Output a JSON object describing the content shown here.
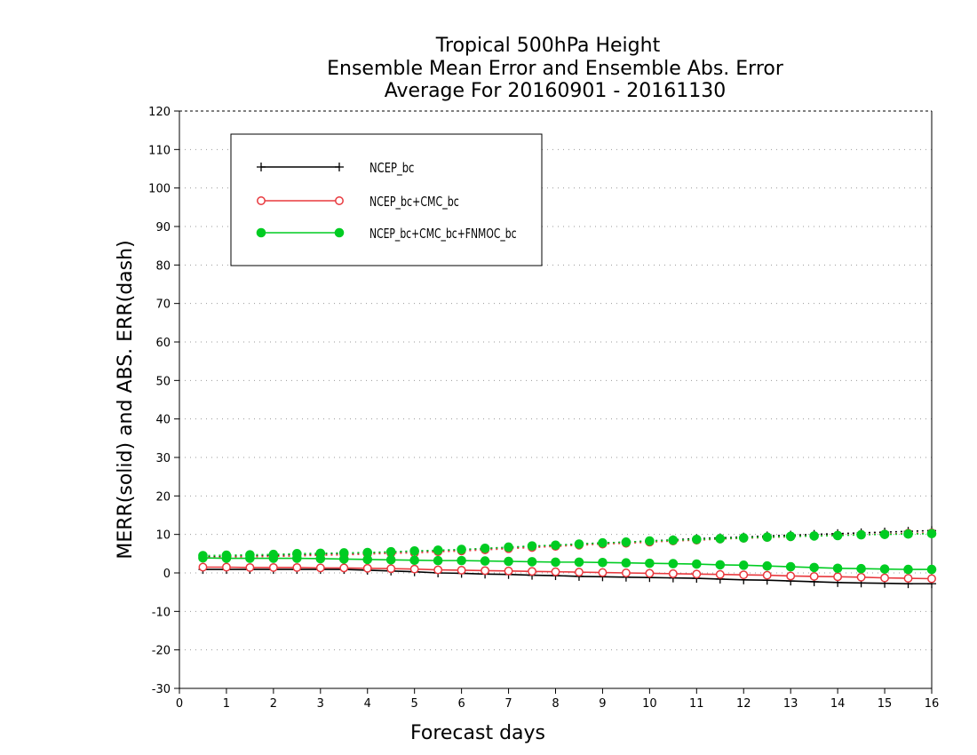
{
  "chart_data": {
    "type": "line",
    "title": [
      "Tropical 500hPa Height",
      "Ensemble Mean Error and Ensemble Abs. Error",
      "Average For 20160901 - 20161130"
    ],
    "xlabel": "Forecast days",
    "ylabel": "MERR(solid) and ABS. ERR(dash)",
    "xlim": [
      0,
      16
    ],
    "ylim": [
      -30,
      120
    ],
    "xticks": [
      0,
      1,
      2,
      3,
      4,
      5,
      6,
      7,
      8,
      9,
      10,
      11,
      12,
      13,
      14,
      15,
      16
    ],
    "yticks": [
      -30,
      -20,
      -10,
      0,
      10,
      20,
      30,
      40,
      50,
      60,
      70,
      80,
      90,
      100,
      110,
      120
    ],
    "grid": true,
    "legend_position": "top-left",
    "x": [
      0.5,
      1,
      1.5,
      2,
      2.5,
      3,
      3.5,
      4,
      4.5,
      5,
      5.5,
      6,
      6.5,
      7,
      7.5,
      8,
      8.5,
      9,
      9.5,
      10,
      10.5,
      11,
      11.5,
      12,
      12.5,
      13,
      13.5,
      14,
      14.5,
      15,
      15.5,
      16
    ],
    "series": [
      {
        "name": "NCEP_bc",
        "color": "#000000",
        "marker": "plus",
        "merr": [
          0.9,
          0.9,
          0.9,
          0.9,
          0.9,
          0.9,
          0.9,
          0.7,
          0.5,
          0.3,
          0.0,
          -0.1,
          -0.3,
          -0.4,
          -0.6,
          -0.7,
          -0.9,
          -1.0,
          -1.1,
          -1.2,
          -1.3,
          -1.4,
          -1.6,
          -1.8,
          -1.9,
          -2.1,
          -2.3,
          -2.5,
          -2.6,
          -2.7,
          -2.8,
          -2.8
        ],
        "abs_err": [
          4.2,
          4.3,
          4.4,
          4.6,
          4.8,
          4.9,
          5.1,
          5.2,
          5.4,
          5.6,
          5.8,
          6.0,
          6.3,
          6.6,
          6.9,
          7.2,
          7.5,
          7.8,
          8.0,
          8.3,
          8.6,
          8.9,
          9.1,
          9.3,
          9.6,
          9.8,
          10.0,
          10.2,
          10.4,
          10.6,
          10.8,
          11.0
        ]
      },
      {
        "name": "NCEP_bc+CMC_bc",
        "color": "#e8383d",
        "marker": "open-circle",
        "merr": [
          1.5,
          1.5,
          1.4,
          1.4,
          1.4,
          1.3,
          1.3,
          1.2,
          1.1,
          1.0,
          0.8,
          0.7,
          0.6,
          0.5,
          0.4,
          0.3,
          0.2,
          0.1,
          -0.0,
          -0.1,
          -0.2,
          -0.3,
          -0.4,
          -0.5,
          -0.6,
          -0.8,
          -0.9,
          -1.0,
          -1.1,
          -1.3,
          -1.4,
          -1.5
        ],
        "abs_err": [
          4.0,
          4.1,
          4.2,
          4.3,
          4.4,
          4.6,
          4.7,
          4.9,
          5.1,
          5.2,
          5.5,
          5.7,
          6.0,
          6.3,
          6.6,
          6.9,
          7.2,
          7.5,
          7.7,
          8.0,
          8.3,
          8.5,
          8.8,
          9.0,
          9.2,
          9.4,
          9.6,
          9.8,
          10.0,
          10.1,
          10.3,
          10.4
        ]
      },
      {
        "name": "NCEP_bc+CMC_bc+FNMOC_bc",
        "color": "#00cc22",
        "marker": "filled-circle",
        "merr": [
          3.9,
          3.8,
          3.8,
          3.8,
          3.8,
          3.7,
          3.6,
          3.5,
          3.4,
          3.3,
          3.2,
          3.2,
          3.1,
          3.0,
          2.9,
          2.8,
          2.8,
          2.7,
          2.6,
          2.5,
          2.4,
          2.3,
          2.1,
          2.0,
          1.8,
          1.6,
          1.4,
          1.2,
          1.1,
          1.0,
          0.9,
          0.9
        ],
        "abs_err": [
          4.5,
          4.6,
          4.7,
          4.8,
          5.0,
          5.1,
          5.2,
          5.3,
          5.5,
          5.7,
          5.9,
          6.1,
          6.4,
          6.7,
          7.0,
          7.2,
          7.5,
          7.8,
          8.0,
          8.3,
          8.5,
          8.7,
          8.9,
          9.1,
          9.3,
          9.5,
          9.6,
          9.7,
          9.9,
          10.0,
          10.1,
          10.2
        ]
      }
    ]
  }
}
